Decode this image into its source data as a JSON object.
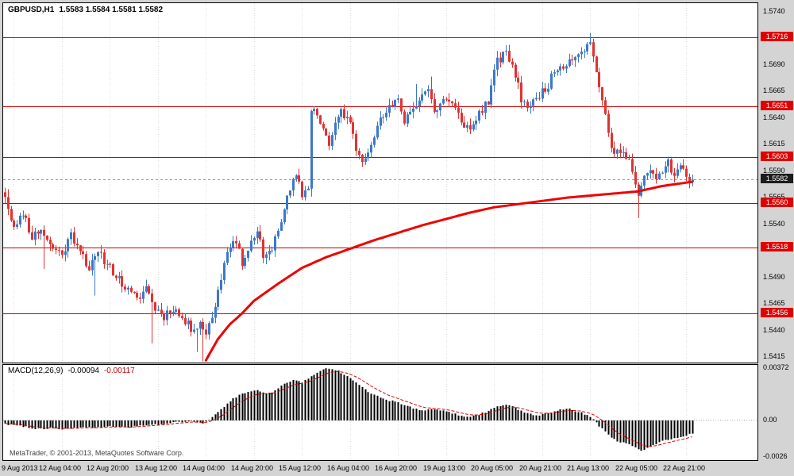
{
  "header": {
    "symbol_period": "GBPUSD,H1",
    "ohlc": "1.5583 1.5584 1.5581 1.5582"
  },
  "macd_header": {
    "label": "MACD(12,26,9)",
    "value": "-0.00094",
    "signal_value": "-0.00117"
  },
  "footer": {
    "copyright": "MetaTrader, © 2001-2013, MetaQuotes Software Corp."
  },
  "colors": {
    "up": "#3c78c8",
    "down": "#e03232",
    "ma": "#ee0000",
    "level": "#d40000",
    "level_label_bg": "#e00000",
    "current_label_bg": "#1c1c1c",
    "hist": "#000000",
    "signal": "#dd0000",
    "grid": "#e0e0e0",
    "outer_bg": "#d4d4d4",
    "chart_bg": "#ffffff",
    "frame": "#000000"
  },
  "chart_data": {
    "type": "candlestick",
    "title": "GBPUSD H1 with MACD(12,26,9)",
    "symbol": "GBPUSD",
    "timeframe": "H1",
    "bar_count": 230,
    "noise_seed": 11,
    "noise_amp": 0.00045,
    "price_axis": {
      "max": 1.5748,
      "min": 1.541,
      "ticks": [
        "1.5740",
        "1.5690",
        "1.5665",
        "1.5640",
        "1.5615",
        "1.5590",
        "1.5565",
        "1.5540",
        "1.5490",
        "1.5465",
        "1.5440",
        "1.5415"
      ]
    },
    "levels": [
      "1.5716",
      "1.5651",
      "1.5603",
      "1.5560",
      "1.5518",
      "1.5456"
    ],
    "current_price": "1.5582",
    "time_labels": [
      [
        3,
        "9 Aug 2013"
      ],
      [
        19,
        "12 Aug 04:00"
      ],
      [
        35,
        "12 Aug 20:00"
      ],
      [
        51,
        "13 Aug 12:00"
      ],
      [
        67,
        "14 Aug 04:00"
      ],
      [
        83,
        "14 Aug 20:00"
      ],
      [
        99,
        "15 Aug 12:00"
      ],
      [
        115,
        "16 Aug 04:00"
      ],
      [
        131,
        "16 Aug 20:00"
      ],
      [
        147,
        "19 Aug 13:00"
      ],
      [
        163,
        "20 Aug 05:00"
      ],
      [
        179,
        "20 Aug 21:00"
      ],
      [
        195,
        "21 Aug 13:00"
      ],
      [
        211,
        "22 Aug 05:00"
      ],
      [
        227,
        "22 Aug 21:00"
      ]
    ],
    "price_path": [
      [
        0,
        1.5568
      ],
      [
        2,
        1.5545
      ],
      [
        4,
        1.5538
      ],
      [
        6,
        1.5552
      ],
      [
        9,
        1.5528
      ],
      [
        12,
        1.5536
      ],
      [
        15,
        1.552
      ],
      [
        19,
        1.5512
      ],
      [
        22,
        1.553
      ],
      [
        25,
        1.5518
      ],
      [
        28,
        1.5498
      ],
      [
        31,
        1.5512
      ],
      [
        34,
        1.5504
      ],
      [
        38,
        1.5488
      ],
      [
        41,
        1.5477
      ],
      [
        44,
        1.5469
      ],
      [
        47,
        1.5481
      ],
      [
        50,
        1.5461
      ],
      [
        53,
        1.5454
      ],
      [
        56,
        1.5462
      ],
      [
        59,
        1.5451
      ],
      [
        62,
        1.5442
      ],
      [
        65,
        1.5448
      ],
      [
        67,
        1.5438
      ],
      [
        69,
        1.5452
      ],
      [
        71,
        1.5478
      ],
      [
        74,
        1.5515
      ],
      [
        76,
        1.5528
      ],
      [
        79,
        1.5505
      ],
      [
        82,
        1.5522
      ],
      [
        84,
        1.5535
      ],
      [
        86,
        1.5508
      ],
      [
        88,
        1.5512
      ],
      [
        91,
        1.5535
      ],
      [
        93,
        1.5555
      ],
      [
        95,
        1.5572
      ],
      [
        97,
        1.5585
      ],
      [
        99,
        1.5568
      ],
      [
        101,
        1.5574
      ],
      [
        102,
        1.565
      ],
      [
        104,
        1.5644
      ],
      [
        106,
        1.563
      ],
      [
        108,
        1.5614
      ],
      [
        110,
        1.5632
      ],
      [
        112,
        1.5648
      ],
      [
        115,
        1.5634
      ],
      [
        117,
        1.5612
      ],
      [
        119,
        1.56
      ],
      [
        121,
        1.5612
      ],
      [
        124,
        1.5632
      ],
      [
        127,
        1.5646
      ],
      [
        131,
        1.5656
      ],
      [
        133,
        1.5638
      ],
      [
        136,
        1.565
      ],
      [
        139,
        1.5662
      ],
      [
        141,
        1.5668
      ],
      [
        143,
        1.5645
      ],
      [
        146,
        1.5658
      ],
      [
        149,
        1.5652
      ],
      [
        152,
        1.5638
      ],
      [
        155,
        1.5628
      ],
      [
        158,
        1.5645
      ],
      [
        161,
        1.5656
      ],
      [
        164,
        1.5694
      ],
      [
        167,
        1.57
      ],
      [
        169,
        1.5691
      ],
      [
        172,
        1.5658
      ],
      [
        175,
        1.565
      ],
      [
        178,
        1.5662
      ],
      [
        181,
        1.5672
      ],
      [
        184,
        1.5688
      ],
      [
        187,
        1.5692
      ],
      [
        190,
        1.57
      ],
      [
        193,
        1.5706
      ],
      [
        195,
        1.571
      ],
      [
        197,
        1.5686
      ],
      [
        199,
        1.5655
      ],
      [
        201,
        1.5624
      ],
      [
        203,
        1.5605
      ],
      [
        206,
        1.5612
      ],
      [
        208,
        1.56
      ],
      [
        211,
        1.5566
      ],
      [
        213,
        1.5582
      ],
      [
        215,
        1.5592
      ],
      [
        217,
        1.558
      ],
      [
        219,
        1.5592
      ],
      [
        221,
        1.5597
      ],
      [
        223,
        1.5588
      ],
      [
        225,
        1.5592
      ],
      [
        227,
        1.5586
      ],
      [
        229,
        1.5582
      ]
    ],
    "spikes": [
      {
        "idx": 1,
        "high": 1.5573
      },
      {
        "idx": 13,
        "low": 1.5498
      },
      {
        "idx": 30,
        "low": 1.5473
      },
      {
        "idx": 49,
        "low": 1.5428
      },
      {
        "idx": 64,
        "low": 1.542
      },
      {
        "idx": 66,
        "low": 1.5411
      },
      {
        "idx": 102,
        "low": 1.5566
      },
      {
        "idx": 137,
        "high": 1.5672
      },
      {
        "idx": 142,
        "high": 1.5679
      },
      {
        "idx": 164,
        "high": 1.5703
      },
      {
        "idx": 195,
        "high": 1.572
      },
      {
        "idx": 211,
        "low": 1.5546
      }
    ],
    "ma_points": [
      [
        67,
        1.5412
      ],
      [
        71,
        1.5432
      ],
      [
        75,
        1.5446
      ],
      [
        79,
        1.5456
      ],
      [
        83,
        1.5468
      ],
      [
        91,
        1.5484
      ],
      [
        99,
        1.5499
      ],
      [
        107,
        1.5509
      ],
      [
        115,
        1.5517
      ],
      [
        123,
        1.5525
      ],
      [
        131,
        1.5532
      ],
      [
        139,
        1.5539
      ],
      [
        147,
        1.5545
      ],
      [
        155,
        1.5551
      ],
      [
        163,
        1.5556
      ],
      [
        171,
        1.5559
      ],
      [
        179,
        1.5562
      ],
      [
        187,
        1.5565
      ],
      [
        195,
        1.5567
      ],
      [
        203,
        1.5569
      ],
      [
        211,
        1.5571
      ],
      [
        219,
        1.5576
      ],
      [
        229,
        1.558
      ]
    ],
    "macd": {
      "axis": {
        "max": 0.00372,
        "min": -0.0026,
        "labels": [
          "0.00372",
          "0.00",
          "-0.0026"
        ]
      },
      "path": [
        [
          0,
          -0.00025
        ],
        [
          5,
          -0.0004
        ],
        [
          10,
          -0.0006
        ],
        [
          15,
          -0.00055
        ],
        [
          20,
          -0.0006
        ],
        [
          25,
          -0.0005
        ],
        [
          30,
          -0.00055
        ],
        [
          35,
          -0.0004
        ],
        [
          40,
          -0.0005
        ],
        [
          45,
          -0.0004
        ],
        [
          50,
          -0.0003
        ],
        [
          55,
          -0.0002
        ],
        [
          58,
          -0.0001
        ],
        [
          62,
          -5e-05
        ],
        [
          66,
          -0.0002
        ],
        [
          69,
          0.0002
        ],
        [
          72,
          0.0008
        ],
        [
          75,
          0.0014
        ],
        [
          78,
          0.0018
        ],
        [
          81,
          0.002
        ],
        [
          84,
          0.0022
        ],
        [
          87,
          0.0019
        ],
        [
          90,
          0.0021
        ],
        [
          93,
          0.0026
        ],
        [
          96,
          0.0029
        ],
        [
          99,
          0.0027
        ],
        [
          102,
          0.0031
        ],
        [
          105,
          0.0035
        ],
        [
          107,
          0.00372
        ],
        [
          110,
          0.0036
        ],
        [
          113,
          0.0033
        ],
        [
          116,
          0.0029
        ],
        [
          119,
          0.0024
        ],
        [
          122,
          0.0019
        ],
        [
          125,
          0.0016
        ],
        [
          128,
          0.0014
        ],
        [
          131,
          0.0013
        ],
        [
          134,
          0.001
        ],
        [
          137,
          0.0008
        ],
        [
          140,
          0.0007
        ],
        [
          143,
          0.0008
        ],
        [
          146,
          0.0007
        ],
        [
          149,
          0.0005
        ],
        [
          152,
          0.0003
        ],
        [
          155,
          0.0003
        ],
        [
          158,
          0.0004
        ],
        [
          161,
          0.0007
        ],
        [
          164,
          0.001
        ],
        [
          167,
          0.0011
        ],
        [
          170,
          0.0009
        ],
        [
          173,
          0.0006
        ],
        [
          176,
          0.0004
        ],
        [
          179,
          0.0004
        ],
        [
          182,
          0.0006
        ],
        [
          185,
          0.0008
        ],
        [
          188,
          0.0008
        ],
        [
          191,
          0.0006
        ],
        [
          194,
          0.0004
        ],
        [
          196,
          0.0001
        ],
        [
          198,
          -0.0004
        ],
        [
          200,
          -0.0008
        ],
        [
          202,
          -0.0012
        ],
        [
          204,
          -0.0015
        ],
        [
          206,
          -0.0016
        ],
        [
          208,
          -0.0017
        ],
        [
          210,
          -0.0019
        ],
        [
          212,
          -0.0021
        ],
        [
          214,
          -0.002
        ],
        [
          216,
          -0.0018
        ],
        [
          218,
          -0.0016
        ],
        [
          220,
          -0.0014
        ],
        [
          222,
          -0.0013
        ],
        [
          224,
          -0.0012
        ],
        [
          226,
          -0.0011
        ],
        [
          228,
          -0.001
        ],
        [
          229,
          -0.00094
        ]
      ]
    }
  }
}
